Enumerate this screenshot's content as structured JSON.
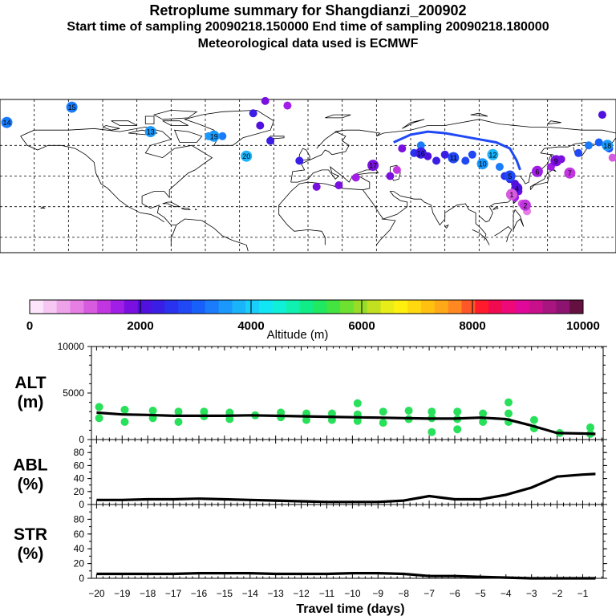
{
  "header": {
    "title": "Retroplume summary for Shangdianzi_200902",
    "sampling_times": "Start time of sampling 20090218.150000      End time of sampling 20090218.180000",
    "met_data": "Meteorological data used is ECMWF"
  },
  "colorbar": {
    "label": "Altitude (m)",
    "tick_labels": [
      "0",
      "2000",
      "4000",
      "6000",
      "8000",
      "10000"
    ],
    "range": [
      0,
      10000
    ],
    "colors": [
      "#fde6fb",
      "#f6c7f3",
      "#eea2ea",
      "#e67ee4",
      "#d75bdf",
      "#c236e2",
      "#a11ee6",
      "#7a10e0",
      "#5010dd",
      "#3a1ee6",
      "#2a32f0",
      "#2048f5",
      "#1860fa",
      "#1a7cfb",
      "#1a98fb",
      "#1ab4fb",
      "#1acefb",
      "#10e6f4",
      "#10f0d8",
      "#10f0b0",
      "#10ec88",
      "#20e860",
      "#44e440",
      "#6ee030",
      "#98dc28",
      "#c2e020",
      "#e8ec18",
      "#fff010",
      "#ffd810",
      "#ffc010",
      "#ffa818",
      "#ff8820",
      "#ff5828",
      "#ff1a2c",
      "#f00a50",
      "#ee0878",
      "#e00898",
      "#c8108c",
      "#a81480",
      "#8c1470",
      "#641040"
    ]
  },
  "chart_data": [
    {
      "type": "scatter+line",
      "panel": "ALT",
      "ylabel": "ALT\n(m)",
      "ylim": [
        0,
        10000
      ],
      "y_tick_labels": [
        "10000",
        "5000",
        "0"
      ],
      "line_x": [
        -20,
        -19,
        -18,
        -17,
        -16,
        -15,
        -14,
        -13,
        -12,
        -11,
        -10,
        -9,
        -8,
        -7,
        -6,
        -5,
        -4,
        -3,
        -2,
        -1,
        -0.5
      ],
      "line_y": [
        2900,
        2700,
        2650,
        2550,
        2550,
        2550,
        2600,
        2550,
        2500,
        2450,
        2400,
        2350,
        2300,
        2250,
        2250,
        2350,
        2200,
        1500,
        700,
        650,
        600
      ],
      "scatter_points": [
        {
          "x": -19.9,
          "y": 3500
        },
        {
          "x": -19.9,
          "y": 2300
        },
        {
          "x": -18.9,
          "y": 3200
        },
        {
          "x": -18.9,
          "y": 1900
        },
        {
          "x": -17.8,
          "y": 3100
        },
        {
          "x": -17.8,
          "y": 2300
        },
        {
          "x": -16.8,
          "y": 3000
        },
        {
          "x": -16.8,
          "y": 1900
        },
        {
          "x": -15.8,
          "y": 3000
        },
        {
          "x": -15.8,
          "y": 2500
        },
        {
          "x": -14.8,
          "y": 2900
        },
        {
          "x": -14.8,
          "y": 2200
        },
        {
          "x": -13.8,
          "y": 2600
        },
        {
          "x": -12.8,
          "y": 2900
        },
        {
          "x": -12.8,
          "y": 2400
        },
        {
          "x": -11.8,
          "y": 2800
        },
        {
          "x": -11.8,
          "y": 2100
        },
        {
          "x": -10.8,
          "y": 2800
        },
        {
          "x": -10.8,
          "y": 2100
        },
        {
          "x": -9.8,
          "y": 3900
        },
        {
          "x": -9.8,
          "y": 2700
        },
        {
          "x": -9.8,
          "y": 2000
        },
        {
          "x": -8.8,
          "y": 3000
        },
        {
          "x": -8.8,
          "y": 1800
        },
        {
          "x": -7.8,
          "y": 3100
        },
        {
          "x": -7.8,
          "y": 2200
        },
        {
          "x": -6.9,
          "y": 3000
        },
        {
          "x": -6.9,
          "y": 2300
        },
        {
          "x": -6.9,
          "y": 800
        },
        {
          "x": -5.9,
          "y": 3000
        },
        {
          "x": -5.9,
          "y": 2200
        },
        {
          "x": -5.9,
          "y": 1100
        },
        {
          "x": -4.9,
          "y": 2800
        },
        {
          "x": -4.9,
          "y": 1900
        },
        {
          "x": -3.9,
          "y": 4000
        },
        {
          "x": -3.9,
          "y": 2800
        },
        {
          "x": -3.9,
          "y": 1900
        },
        {
          "x": -2.9,
          "y": 2100
        },
        {
          "x": -2.9,
          "y": 1200
        },
        {
          "x": -1.9,
          "y": 700
        },
        {
          "x": -0.7,
          "y": 1300
        },
        {
          "x": -0.7,
          "y": 600
        }
      ]
    },
    {
      "type": "line",
      "panel": "ABL",
      "ylabel": "ABL\n(%)",
      "ylim": [
        0,
        100
      ],
      "y_tick_labels": [
        "0",
        "20",
        "40",
        "60",
        "80"
      ],
      "x": [
        -20,
        -19,
        -18,
        -17,
        -16,
        -15,
        -14,
        -13,
        -12,
        -11,
        -10,
        -9,
        -8,
        -7,
        -6,
        -5,
        -4,
        -3,
        -2,
        -1,
        -0.5
      ],
      "y": [
        7,
        7,
        8,
        8,
        9,
        8,
        7,
        6,
        5,
        4,
        4,
        4,
        6,
        13,
        8,
        8,
        15,
        26,
        43,
        46,
        47
      ]
    },
    {
      "type": "line",
      "panel": "STR",
      "ylabel": "STR\n(%)",
      "ylim": [
        0,
        100
      ],
      "y_tick_labels": [
        "0",
        "20",
        "40",
        "60",
        "80"
      ],
      "x": [
        -20,
        -19,
        -18,
        -17,
        -16,
        -15,
        -14,
        -13,
        -12,
        -11,
        -10,
        -9,
        -8,
        -7,
        -6,
        -5,
        -4,
        -3,
        -2,
        -1,
        -0.5
      ],
      "y": [
        6,
        6,
        6,
        6,
        7,
        7,
        7,
        6,
        6,
        6,
        7,
        7,
        6,
        3,
        3,
        2,
        1,
        0,
        0,
        0,
        0
      ]
    }
  ],
  "x_axis": {
    "xlabel": "Travel time (days)",
    "tick_labels": [
      "−20",
      "−19",
      "−18",
      "−17",
      "−16",
      "−15",
      "−14",
      "−13",
      "−12",
      "−11",
      "−10",
      "−9",
      "−8",
      "−7",
      "−6",
      "−5",
      "−4",
      "−3",
      "−2",
      "−1"
    ],
    "xlim": [
      -20.2,
      -0.2
    ]
  },
  "map": {
    "plume_labels": [
      {
        "text": "14",
        "lon": -176,
        "lat": 75,
        "color": "#1a7cfb"
      },
      {
        "text": "15",
        "lon": -138,
        "lat": 85,
        "color": "#1a7cfb"
      },
      {
        "text": "13",
        "lon": -92,
        "lat": 69,
        "color": "#1a98fb"
      },
      {
        "text": "19",
        "lon": -55,
        "lat": 66,
        "color": "#1a98fb"
      },
      {
        "text": "20",
        "lon": -36,
        "lat": 53,
        "color": "#1ab4fb"
      },
      {
        "text": "16",
        "lon": 66,
        "lat": 55,
        "color": "#3a1ee6"
      },
      {
        "text": "17",
        "lon": 38,
        "lat": 47,
        "color": "#7a10e0"
      },
      {
        "text": "11",
        "lon": 85,
        "lat": 52,
        "color": "#2048f5"
      },
      {
        "text": "10",
        "lon": 102,
        "lat": 48,
        "color": "#1a98fb"
      },
      {
        "text": "12",
        "lon": 108,
        "lat": 54,
        "color": "#1ab4fb"
      },
      {
        "text": "5",
        "lon": 118,
        "lat": 40,
        "color": "#2048f5"
      },
      {
        "text": "6",
        "lon": 134,
        "lat": 43,
        "color": "#a11ee6"
      },
      {
        "text": "4",
        "lon": 122,
        "lat": 32,
        "color": "#5010dd"
      },
      {
        "text": "2",
        "lon": 127,
        "lat": 21,
        "color": "#c236e2"
      },
      {
        "text": "1",
        "lon": 119,
        "lat": 28,
        "color": "#d75bdf"
      },
      {
        "text": "7",
        "lon": 153,
        "lat": 42,
        "color": "#c236e2"
      },
      {
        "text": "9",
        "lon": 145,
        "lat": 50,
        "color": "#7a10e0"
      },
      {
        "text": "18",
        "lon": 175,
        "lat": 60,
        "color": "#1a98fb"
      }
    ],
    "plume_dots": [
      {
        "lon": -176,
        "lat": 75,
        "alt": 3000
      },
      {
        "lon": -138,
        "lat": 85,
        "alt": 3000
      },
      {
        "lon": -92,
        "lat": 69,
        "alt": 3500
      },
      {
        "lon": -58,
        "lat": 66,
        "alt": 3500
      },
      {
        "lon": -50,
        "lat": 66,
        "alt": 3200
      },
      {
        "lon": -36,
        "lat": 53,
        "alt": 3800
      },
      {
        "lon": -32,
        "lat": 81,
        "alt": 2200
      },
      {
        "lon": -25,
        "lat": 89,
        "alt": 1800
      },
      {
        "lon": -12,
        "lat": 86,
        "alt": 1600
      },
      {
        "lon": -28,
        "lat": 73,
        "alt": 2000
      },
      {
        "lon": -22,
        "lat": 63,
        "alt": 2200
      },
      {
        "lon": -5,
        "lat": 50,
        "alt": 2200
      },
      {
        "lon": 5,
        "lat": 33,
        "alt": 1800
      },
      {
        "lon": 18,
        "lat": 34,
        "alt": 1900
      },
      {
        "lon": 28,
        "lat": 39,
        "alt": 1700
      },
      {
        "lon": 38,
        "lat": 47,
        "alt": 1500
      },
      {
        "lon": 48,
        "lat": 40,
        "alt": 1900
      },
      {
        "lon": 52,
        "lat": 44,
        "alt": 1400
      },
      {
        "lon": 55,
        "lat": 58,
        "alt": 1900
      },
      {
        "lon": 62,
        "lat": 55,
        "alt": 2500
      },
      {
        "lon": 66,
        "lat": 60,
        "alt": 3200
      },
      {
        "lon": 70,
        "lat": 53,
        "alt": 2100
      },
      {
        "lon": 75,
        "lat": 50,
        "alt": 2300
      },
      {
        "lon": 80,
        "lat": 54,
        "alt": 2400
      },
      {
        "lon": 85,
        "lat": 52,
        "alt": 2600
      },
      {
        "lon": 92,
        "lat": 50,
        "alt": 2700
      },
      {
        "lon": 96,
        "lat": 54,
        "alt": 2800
      },
      {
        "lon": 102,
        "lat": 48,
        "alt": 3200
      },
      {
        "lon": 108,
        "lat": 54,
        "alt": 3400
      },
      {
        "lon": 112,
        "lat": 46,
        "alt": 3300
      },
      {
        "lon": 115,
        "lat": 40,
        "alt": 2600
      },
      {
        "lon": 118,
        "lat": 38,
        "alt": 2300
      },
      {
        "lon": 121,
        "lat": 35,
        "alt": 2100
      },
      {
        "lon": 123,
        "lat": 30,
        "alt": 1900
      },
      {
        "lon": 121,
        "lat": 26,
        "alt": 1600
      },
      {
        "lon": 125,
        "lat": 22,
        "alt": 1200
      },
      {
        "lon": 128,
        "lat": 17,
        "alt": 900
      },
      {
        "lon": 134,
        "lat": 43,
        "alt": 1700
      },
      {
        "lon": 142,
        "lat": 46,
        "alt": 1600
      },
      {
        "lon": 148,
        "lat": 51,
        "alt": 1800
      },
      {
        "lon": 153,
        "lat": 42,
        "alt": 1000
      },
      {
        "lon": 158,
        "lat": 55,
        "alt": 2900
      },
      {
        "lon": 164,
        "lat": 60,
        "alt": 3200
      },
      {
        "lon": 170,
        "lat": 62,
        "alt": 3000
      },
      {
        "lon": 176,
        "lat": 58,
        "alt": 2900
      },
      {
        "lon": 178,
        "lat": 52,
        "alt": 1100
      },
      {
        "lon": 172,
        "lat": 80,
        "alt": 2000
      }
    ]
  }
}
